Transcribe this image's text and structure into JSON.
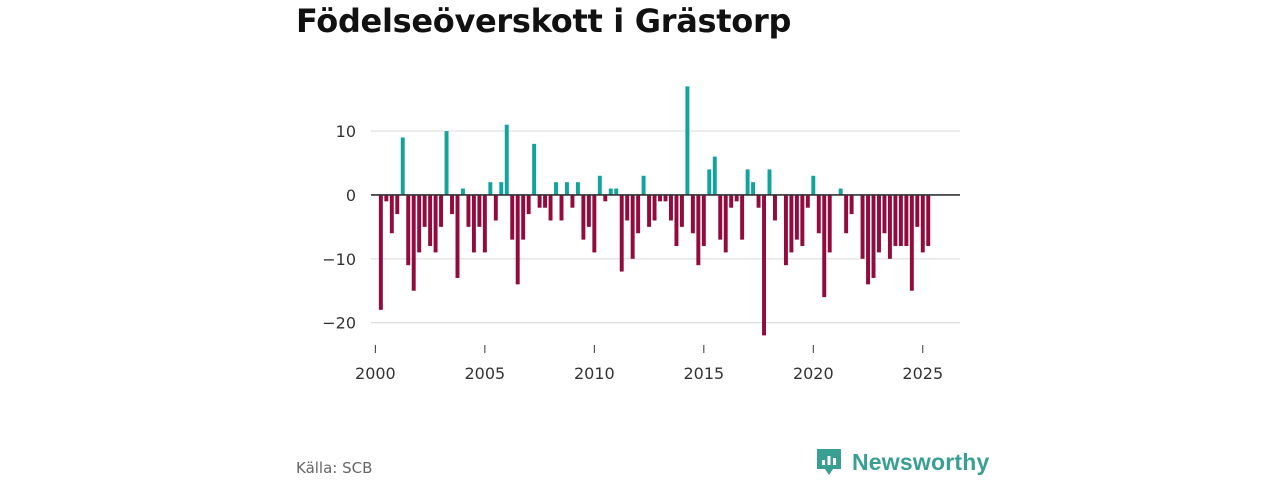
{
  "title": "Födelseöverskott i Grästorp",
  "source_label": "Källa: SCB",
  "brand": {
    "name": "Newsworthy",
    "icon": "newsworthy-logo-icon"
  },
  "colors": {
    "positive": "#13a39d",
    "negative": "#930a3d",
    "grid": "#dddddd",
    "zero": "#333333",
    "brand": "#3a9f93"
  },
  "chart_data": {
    "type": "bar",
    "title": "Födelseöverskott i Grästorp",
    "xlabel": "",
    "ylabel": "",
    "frequency": "quarterly",
    "x_start": 2000.25,
    "x_step": 0.25,
    "xlim": [
      1999.8,
      2026.7
    ],
    "ylim": [
      -23.5,
      18
    ],
    "x_ticks": [
      2000,
      2005,
      2010,
      2015,
      2020,
      2025
    ],
    "x_tick_labels": [
      "2000",
      "2005",
      "2010",
      "2015",
      "2020",
      "2025"
    ],
    "y_ticks": [
      10,
      0,
      -10,
      -20
    ],
    "y_tick_labels": [
      "10",
      "0",
      "−10",
      "−20"
    ],
    "values": [
      -18,
      -1,
      -6,
      -3,
      9,
      -11,
      -15,
      -9,
      -5,
      -8,
      -9,
      -5,
      10,
      -3,
      -13,
      1,
      -5,
      -9,
      -5,
      -9,
      2,
      -4,
      2,
      11,
      -7,
      -14,
      -7,
      -3,
      8,
      -2,
      -2,
      -4,
      2,
      -4,
      2,
      -2,
      2,
      -7,
      -5,
      -9,
      3,
      -1,
      1,
      1,
      -12,
      -4,
      -10,
      -6,
      3,
      -5,
      -4,
      -1,
      -1,
      -4,
      -8,
      -5,
      17,
      -6,
      -11,
      -8,
      4,
      6,
      -7,
      -9,
      -2,
      -1,
      -7,
      4,
      2,
      -2,
      -22,
      4,
      -4,
      0,
      -11,
      -9,
      -7,
      -8,
      -2,
      3,
      -6,
      -16,
      -9,
      0,
      1,
      -6,
      -3,
      0,
      -10,
      -14,
      -13,
      -9,
      -6,
      -10,
      -8,
      -8,
      -8,
      -15,
      -5,
      -9,
      -8
    ],
    "grid": true,
    "legend": "none"
  }
}
